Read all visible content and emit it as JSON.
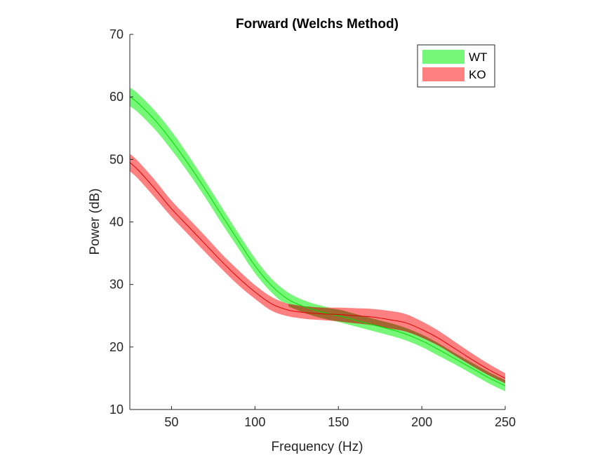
{
  "chart_data": {
    "type": "area",
    "title": "Forward (Welchs Method)",
    "xlabel": "Frequency (Hz)",
    "ylabel": "Power (dB)",
    "xlim": [
      25,
      250
    ],
    "ylim": [
      10,
      70
    ],
    "xticks": [
      50,
      100,
      150,
      200,
      250
    ],
    "yticks": [
      10,
      20,
      30,
      40,
      50,
      60,
      70
    ],
    "grid": false,
    "legend_position": "top-right",
    "x": [
      25,
      30,
      40,
      50,
      60,
      70,
      80,
      90,
      100,
      110,
      120,
      130,
      140,
      150,
      160,
      170,
      180,
      190,
      200,
      210,
      220,
      230,
      240,
      250
    ],
    "series": [
      {
        "name": "WT",
        "color": "#00dd00",
        "band_color": "#77f777",
        "mean": [
          60,
          59,
          56.3,
          53,
          49.3,
          45.3,
          41.1,
          37,
          33,
          29.8,
          27.6,
          26.4,
          25.6,
          25,
          24.3,
          23.6,
          22.9,
          22.1,
          21,
          19.6,
          18.1,
          16.6,
          15.1,
          13.8
        ],
        "band_width": [
          1.5,
          1.5,
          1.5,
          1.5,
          1.4,
          1.3,
          1.3,
          1.2,
          1.2,
          1.1,
          1.1,
          1,
          1,
          1,
          1,
          1,
          1,
          1,
          1,
          1,
          0.9,
          0.9,
          0.9,
          0.9
        ]
      },
      {
        "name": "KO",
        "color": "#dd0000",
        "band_color": "#ff8080",
        "mean": [
          49.5,
          48.3,
          45.3,
          42.1,
          39.3,
          36.5,
          33.7,
          31.1,
          28.8,
          26.9,
          25.9,
          25.5,
          25.3,
          25.2,
          25,
          24.8,
          24.4,
          23.9,
          22.8,
          21.4,
          19.7,
          18,
          16.4,
          15
        ],
        "band_width": [
          1.4,
          1.4,
          1.4,
          1.3,
          1.3,
          1.3,
          1.2,
          1.2,
          1.1,
          1.1,
          1,
          1,
          1,
          1.1,
          1.2,
          1.3,
          1.4,
          1.4,
          1.3,
          1.2,
          1.1,
          1,
          0.9,
          0.8
        ]
      }
    ],
    "overlap_color": "#a06830"
  }
}
